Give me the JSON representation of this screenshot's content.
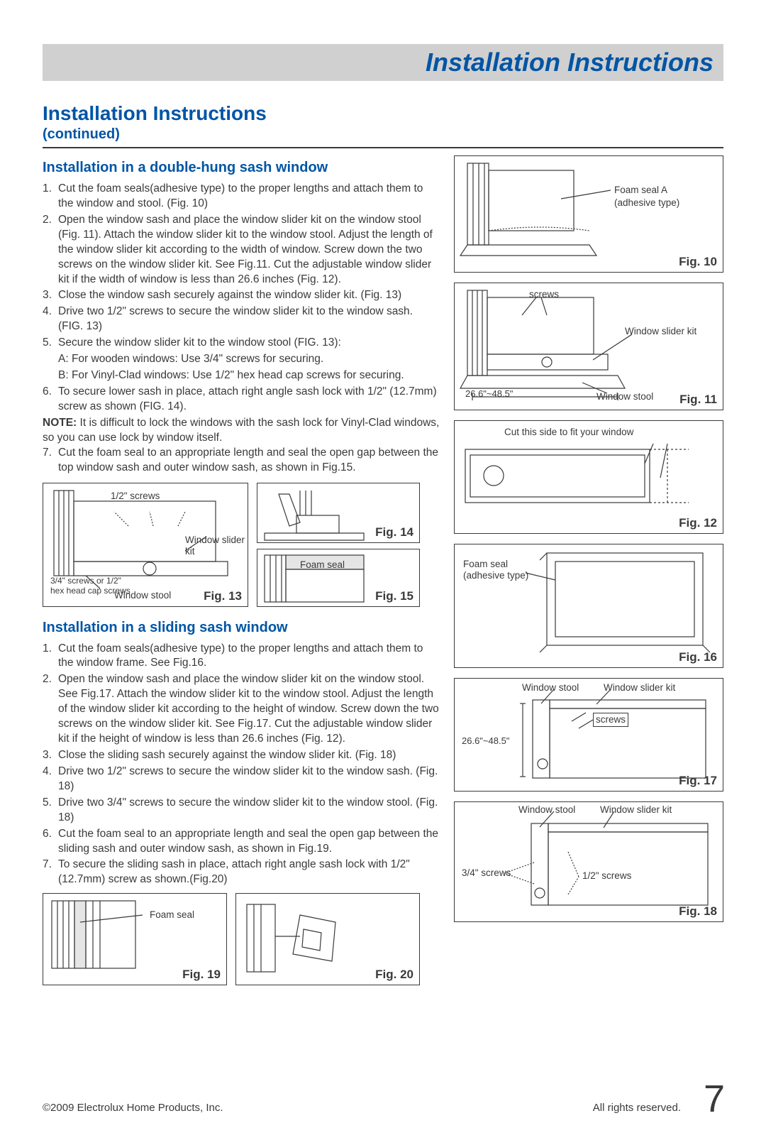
{
  "header": {
    "title": "Installation Instructions"
  },
  "section": {
    "title": "Installation Instructions",
    "sub": "(continued)"
  },
  "doubleHung": {
    "heading": "Installation in a double-hung sash window",
    "steps": [
      {
        "n": "1.",
        "t": "Cut the foam seals(adhesive type) to the proper lengths and attach them to the window and stool. (Fig. 10)"
      },
      {
        "n": "2.",
        "t": "Open the window sash and place the window slider kit on the window stool (Fig. 11). Attach the window slider kit to the window stool. Adjust the length of the window slider kit according to the width of window. Screw down the two screws on the window slider kit. See Fig.11. Cut the adjustable window slider kit if the width of window is less than 26.6 inches (Fig. 12)."
      },
      {
        "n": "3.",
        "t": "Close the window sash securely against the window slider kit. (Fig. 13)"
      },
      {
        "n": "4.",
        "t": "Drive two 1/2\" screws to secure the window slider kit to the window sash. (FIG. 13)"
      },
      {
        "n": "5.",
        "t": "Secure the window slider kit to the window stool (FIG. 13):"
      },
      {
        "n": "",
        "t": "A: For wooden windows: Use 3/4\" screws for securing."
      },
      {
        "n": "",
        "t": "B: For Vinyl-Clad windows: Use 1/2\" hex head cap screws for securing."
      },
      {
        "n": "6.",
        "t": "To secure lower sash in place, attach right angle sash lock with 1/2\" (12.7mm) screw as shown (FIG. 14)."
      }
    ],
    "noteLabel": "NOTE:",
    "note": " It is difficult to lock the windows with the sash lock for Vinyl-Clad windows, so you can use lock by window itself.",
    "step7": {
      "n": "7.",
      "t": "Cut the foam seal to an appropriate length and seal the open gap between the top window sash and outer window sash, as shown in Fig.15."
    }
  },
  "sliding": {
    "heading": "Installation in a sliding sash window",
    "steps": [
      {
        "n": "1.",
        "t": "Cut the foam seals(adhesive type) to the proper lengths and attach them to  the window frame. See Fig.16."
      },
      {
        "n": "2.",
        "t": "Open the window sash and place the window slider kit on  the window stool. See Fig.17. Attach the window slider kit to the window stool. Adjust the length of the window slider kit according to the height of window. Screw down the two screws on the window slider kit. See Fig.17.  Cut the adjustable window slider kit if the height of window is less than 26.6 inches (Fig. 12)."
      },
      {
        "n": "3.",
        "t": "Close the sliding sash securely against the window slider kit. (Fig. 18)"
      },
      {
        "n": "4.",
        "t": "Drive two 1/2\" screws to secure the window slider kit to the window sash. (Fig. 18)"
      },
      {
        "n": "5.",
        "t": "Drive two 3/4\" screws to secure the window slider kit to the window stool. (Fig. 18)"
      },
      {
        "n": "6.",
        "t": "Cut the foam seal to an appropriate length and seal the open gap between the sliding sash and outer window sash, as shown in Fig.19."
      },
      {
        "n": "7.",
        "t": "To secure the sliding sash in place, attach right angle sash lock with 1/2\" (12.7mm) screw as shown.(Fig.20)"
      }
    ]
  },
  "figs": {
    "f10": {
      "label": "Fig. 10",
      "a": "Foam seal A",
      "b": "(adhesive type)"
    },
    "f11": {
      "label": "Fig. 11",
      "screws": "screws",
      "kit": "Window slider kit",
      "stool": "Window stool",
      "dim": "26.6\"~48.5\""
    },
    "f12": {
      "label": "Fig. 12",
      "cut": "Cut this side to fit your window"
    },
    "f13": {
      "label": "Fig. 13",
      "half": "1/2\" screws",
      "kit": "Window slider kit",
      "stool": "Window stool",
      "three": "3/4\" screws or 1/2\" hex head cap screws"
    },
    "f14": {
      "label": "Fig. 14"
    },
    "f15": {
      "label": "Fig. 15",
      "foam": "Foam seal"
    },
    "f16": {
      "label": "Fig. 16",
      "foam": "Foam seal (adhesive type)"
    },
    "f17": {
      "label": "Fig. 17",
      "stool": "Window stool",
      "kit": "Window slider kit",
      "screws": "screws",
      "dim": "26.6\"~48.5\""
    },
    "f18": {
      "label": "Fig. 18",
      "stool": "Window stool",
      "kit": "Window slider kit",
      "three": "3/4\" screws",
      "half": "1/2\" screws"
    },
    "f19": {
      "label": "Fig. 19",
      "foam": "Foam seal"
    },
    "f20": {
      "label": "Fig. 20"
    }
  },
  "footer": {
    "left": "©2009 Electrolux Home Products, Inc.",
    "right": "All rights reserved.",
    "page": "7"
  }
}
